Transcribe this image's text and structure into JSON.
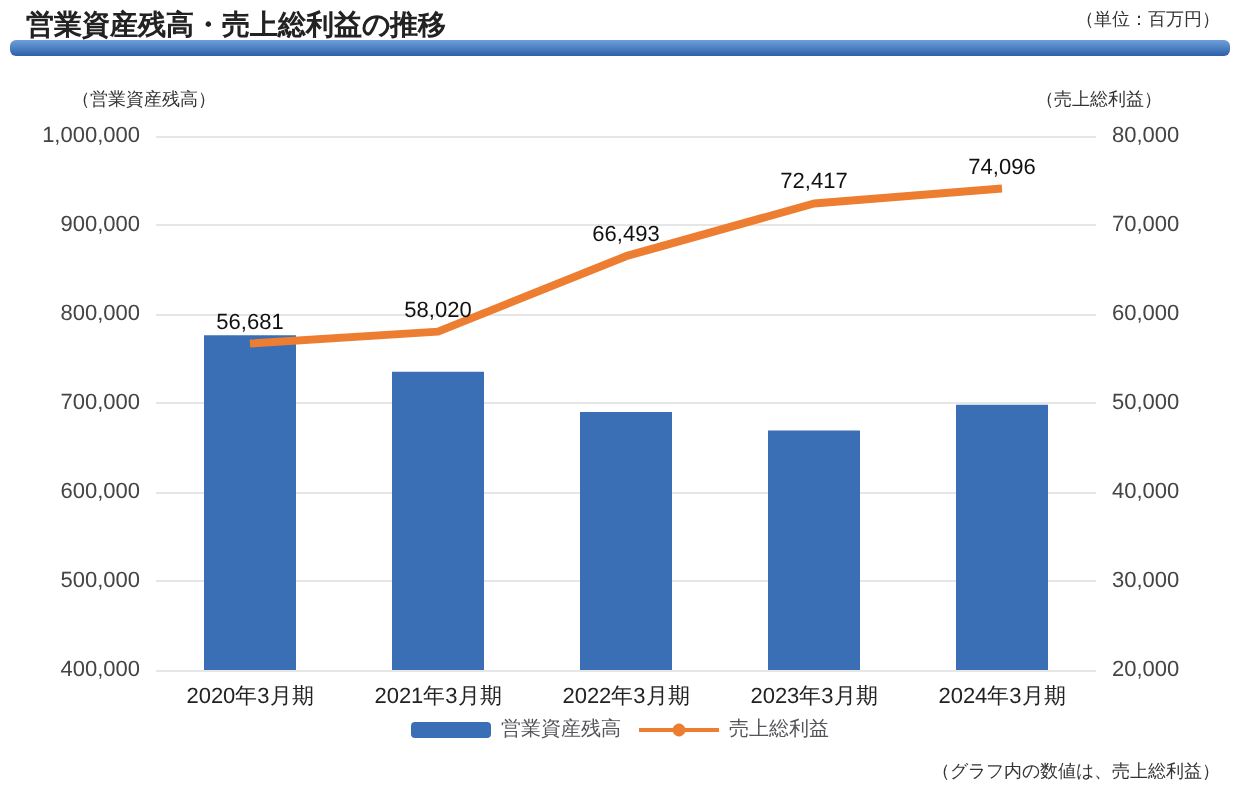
{
  "chart_data": {
    "type": "bar",
    "title": "営業資産残高・売上総利益の推移",
    "ylabel": "（営業資産残高）",
    "y2label": "（売上総利益）",
    "annotations": [
      "（単位：百万円）",
      "（グラフ内の数値は、売上総利益）"
    ],
    "categories": [
      "2020年3月期",
      "2021年3月期",
      "2022年3月期",
      "2023年3月期",
      "2024年3月期"
    ],
    "series": [
      {
        "name": "営業資産残高",
        "color": "#3a6fb5",
        "values": [
          776000,
          735000,
          690000,
          669000,
          698000
        ]
      },
      {
        "name": "売上総利益",
        "type": "line",
        "axis": "y2",
        "color": "#ed7d31",
        "values": [
          56681,
          58020,
          66493,
          72417,
          74096
        ],
        "value_labels": [
          "56,681",
          "58,020",
          "66,493",
          "72,417",
          "74,096"
        ]
      }
    ],
    "ylim": [
      400000,
      1000000
    ],
    "yticks": [
      {
        "value": 400000,
        "label": "400,000"
      },
      {
        "value": 500000,
        "label": "500,000"
      },
      {
        "value": 600000,
        "label": "600,000"
      },
      {
        "value": 700000,
        "label": "700,000"
      },
      {
        "value": 800000,
        "label": "800,000"
      },
      {
        "value": 900000,
        "label": "900,000"
      },
      {
        "value": 1000000,
        "label": "1,000,000"
      }
    ],
    "y2lim": [
      20000,
      80000
    ],
    "y2ticks": [
      {
        "value": 20000,
        "label": "20,000"
      },
      {
        "value": 30000,
        "label": "30,000"
      },
      {
        "value": 40000,
        "label": "40,000"
      },
      {
        "value": 50000,
        "label": "50,000"
      },
      {
        "value": 60000,
        "label": "60,000"
      },
      {
        "value": 70000,
        "label": "70,000"
      },
      {
        "value": 80000,
        "label": "80,000"
      }
    ],
    "grid": "y",
    "legend": "bottom",
    "marker": "none",
    "line_style": "solid"
  }
}
